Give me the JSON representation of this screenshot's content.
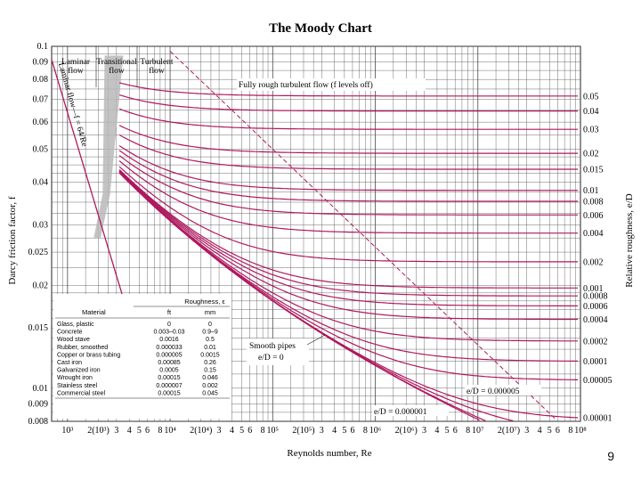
{
  "page_number": "9",
  "chart_data": {
    "type": "line",
    "title": "The Moody Chart",
    "xlabel": "Reynolds number, Re",
    "ylabel": "Darcy friction factor, f",
    "ylabel_right": "Relative roughness, e/D",
    "xscale": "log",
    "yscale": "log",
    "xlim": [
      700,
      100000000
    ],
    "ylim": [
      0.008,
      0.1
    ],
    "grid": true,
    "x_tick_labels": [
      "10³",
      "2(10³)",
      "3",
      "4",
      "5",
      "6",
      "8",
      "10⁴",
      "2(10⁴)",
      "3",
      "4",
      "5",
      "6",
      "8",
      "10⁵",
      "2(10⁵)",
      "3",
      "4",
      "5",
      "6",
      "8",
      "10⁶",
      "2(10⁶)",
      "3",
      "4",
      "5",
      "6",
      "8",
      "10⁷",
      "2(10⁷)",
      "3",
      "4",
      "5",
      "6",
      "8",
      "10⁸"
    ],
    "y_tick_labels": [
      {
        "value": 0.1,
        "label": "0.1"
      },
      {
        "value": 0.09,
        "label": "0.09"
      },
      {
        "value": 0.08,
        "label": "0.08"
      },
      {
        "value": 0.07,
        "label": "0.07"
      },
      {
        "value": 0.06,
        "label": "0.06"
      },
      {
        "value": 0.05,
        "label": "0.05"
      },
      {
        "value": 0.04,
        "label": "0.04"
      },
      {
        "value": 0.03,
        "label": "0.03"
      },
      {
        "value": 0.025,
        "label": "0.025"
      },
      {
        "value": 0.02,
        "label": "0.02"
      },
      {
        "value": 0.015,
        "label": "0.015"
      },
      {
        "value": 0.01,
        "label": "0.01"
      },
      {
        "value": 0.009,
        "label": "0.009"
      },
      {
        "value": 0.008,
        "label": "0.008"
      }
    ],
    "roughness_labels": [
      "0.05",
      "0.04",
      "0.03",
      "0.02",
      "0.015",
      "0.01",
      "0.008",
      "0.006",
      "0.004",
      "0.002",
      "0.001",
      "0.0008",
      "0.0006",
      "0.0004",
      "0.0002",
      "0.0001",
      "0.00005",
      "0.00001"
    ],
    "roughness_values": [
      0.05,
      0.04,
      0.03,
      0.02,
      0.015,
      0.01,
      0.008,
      0.006,
      0.004,
      0.002,
      0.001,
      0.0008,
      0.0006,
      0.0004,
      0.0002,
      0.0001,
      5e-05,
      1e-05,
      5e-06,
      1e-06
    ],
    "laminar": {
      "label": "Laminar flow—f = 64/Re",
      "x": [
        700,
        4000
      ],
      "f_formula": "64/Re"
    },
    "regions": [
      "Laminar flow",
      "Transitional flow",
      "Turbulent flow"
    ],
    "annotations": {
      "fully_rough": "Fully rough turbulent flow (f levels off)",
      "smooth_pipes": "Smooth pipes",
      "smooth_eq": "e/D = 0",
      "ed_5e6": "e/D = 0.000005",
      "ed_1e6": "e/D = 0.000001"
    },
    "roughness_table": {
      "header_group": "Roughness, ε",
      "columns": [
        "Material",
        "ft",
        "mm"
      ],
      "rows": [
        [
          "Glass, plastic",
          "0",
          "0"
        ],
        [
          "Concrete",
          "0.003–0.03",
          "0.9–9"
        ],
        [
          "Wood stave",
          "0.0016",
          "0.5"
        ],
        [
          "Rubber, smoothed",
          "0.000033",
          "0.01"
        ],
        [
          "Copper or brass tubing",
          "0.000005",
          "0.0015"
        ],
        [
          "Cast iron",
          "0.00085",
          "0.26"
        ],
        [
          "Galvanized iron",
          "0.0005",
          "0.15"
        ],
        [
          "Wrought iron",
          "0.00015",
          "0.046"
        ],
        [
          "Stainless steel",
          "0.000007",
          "0.002"
        ],
        [
          "Commercial steel",
          "0.00015",
          "0.045"
        ]
      ]
    },
    "colors": {
      "curves": "#b0185f",
      "grid": "#4a4a4a",
      "transition_band": "#b8b8b8"
    }
  }
}
